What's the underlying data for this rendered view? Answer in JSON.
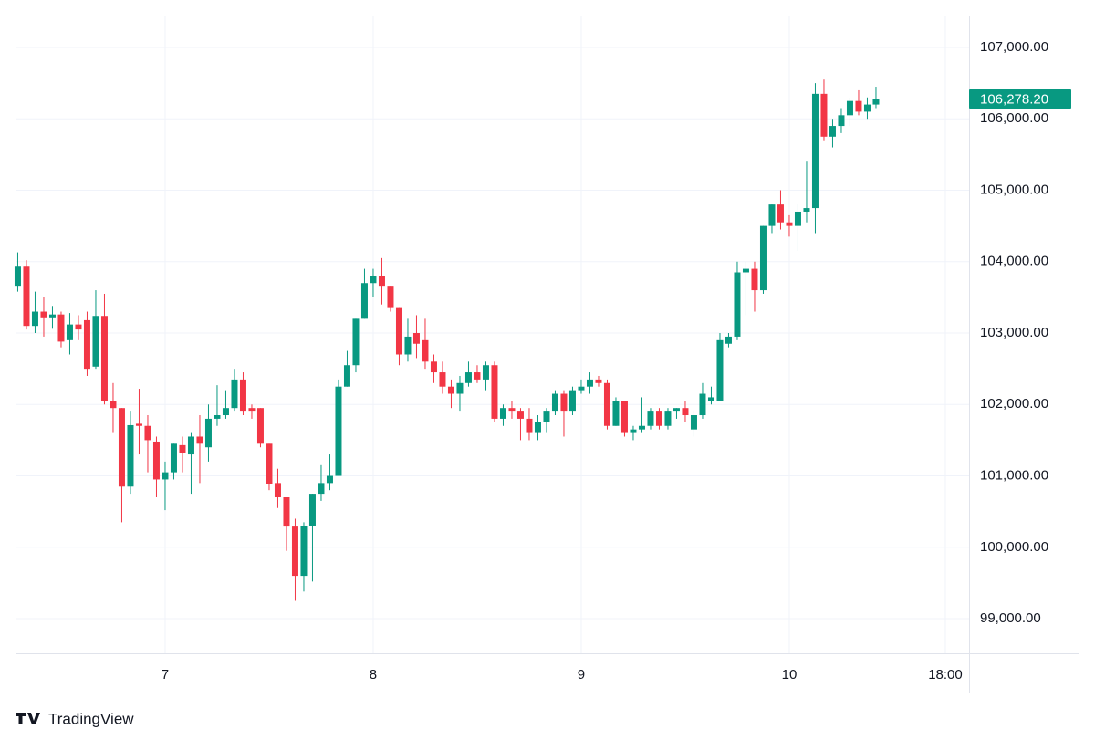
{
  "chart_data": {
    "type": "candlestick",
    "brand": "TradingView",
    "up_color": "#089981",
    "down_color": "#f23645",
    "grid": true,
    "x": [
      -17,
      -16,
      -15,
      -14,
      -13,
      -12,
      -11,
      -10,
      -9,
      -8,
      -7,
      -6,
      -5,
      -4,
      -3,
      -2,
      -1,
      0,
      1,
      2,
      3,
      4,
      5,
      6,
      7,
      8,
      9,
      10,
      11,
      12,
      13,
      14,
      15,
      16,
      17,
      18,
      19,
      20,
      21,
      22,
      23,
      24,
      25,
      26,
      27,
      28,
      29,
      30,
      31,
      32,
      33,
      34,
      35,
      36,
      37,
      38,
      39,
      40,
      41,
      42,
      43,
      44,
      45,
      46,
      47,
      48,
      49,
      50,
      51,
      52,
      53,
      54,
      55,
      56,
      57,
      58,
      59,
      60,
      61,
      62,
      63,
      64,
      65,
      66,
      67,
      68,
      69,
      70,
      71,
      72,
      73,
      74,
      75,
      76,
      77,
      78,
      79,
      80,
      81,
      82
    ],
    "open": [
      103650,
      103930,
      103100,
      103300,
      103220,
      103260,
      102900,
      103120,
      103180,
      102530,
      103240,
      102050,
      101950,
      100850,
      101730,
      101700,
      101480,
      100950,
      101050,
      101430,
      101300,
      101550,
      101400,
      101800,
      101850,
      101950,
      102350,
      101950,
      101950,
      101450,
      100900,
      100700,
      100290,
      99600,
      100300,
      100750,
      100900,
      101000,
      102250,
      102550,
      103200,
      103700,
      103800,
      103650,
      103350,
      102700,
      103000,
      102900,
      102600,
      102450,
      102250,
      102150,
      102300,
      102450,
      102350,
      102550,
      101800,
      101950,
      101900,
      101800,
      101600,
      101750,
      101900,
      102150,
      101900,
      102200,
      102250,
      102350,
      102300,
      101700,
      102050,
      101600,
      101650,
      101700,
      101900,
      101700,
      101900,
      101950,
      101650,
      101850,
      102050,
      102050,
      102850,
      102950,
      103850,
      103900,
      103600,
      104500,
      104800,
      104550,
      104500,
      104700,
      104750,
      106350,
      105750,
      105900,
      106050,
      106250,
      106100,
      106200
    ],
    "high": [
      104130,
      104020,
      103580,
      103500,
      103380,
      103300,
      103280,
      103250,
      103300,
      103600,
      103550,
      102300,
      101950,
      101900,
      102220,
      101850,
      101550,
      101200,
      101450,
      101550,
      101600,
      101850,
      102000,
      102270,
      102200,
      102500,
      102450,
      102000,
      101950,
      101450,
      101100,
      100700,
      100400,
      100350,
      100750,
      101150,
      101300,
      102350,
      102750,
      103200,
      103900,
      103900,
      104050,
      103650,
      103350,
      103200,
      103250,
      103200,
      102700,
      102600,
      102350,
      102400,
      102600,
      102550,
      102600,
      102600,
      102000,
      102050,
      101950,
      101950,
      101850,
      101950,
      102200,
      102200,
      102250,
      102350,
      102450,
      102400,
      102350,
      102100,
      102050,
      101700,
      102100,
      101950,
      101950,
      101950,
      101950,
      102050,
      101900,
      102300,
      102250,
      103000,
      103000,
      104000,
      104000,
      104000,
      104500,
      104800,
      105000,
      104650,
      104800,
      105400,
      106500,
      106550,
      106000,
      106150,
      106300,
      106400,
      106300,
      106450
    ],
    "low": [
      103580,
      103050,
      103000,
      102950,
      103060,
      102800,
      102700,
      102900,
      102400,
      102500,
      102000,
      101600,
      100350,
      100750,
      101300,
      101050,
      100700,
      100520,
      100950,
      101050,
      100750,
      100900,
      101200,
      101700,
      101800,
      101900,
      101850,
      101800,
      101400,
      100800,
      100550,
      99950,
      99250,
      99380,
      99520,
      100650,
      100800,
      101000,
      102250,
      102450,
      103200,
      103500,
      103400,
      103300,
      102550,
      102600,
      102650,
      102500,
      102300,
      102150,
      101950,
      101900,
      102250,
      102300,
      102200,
      101750,
      101700,
      101800,
      101500,
      101500,
      101500,
      101600,
      101850,
      101550,
      101850,
      102150,
      102150,
      102250,
      101650,
      101700,
      101550,
      101500,
      101600,
      101650,
      101650,
      101650,
      101800,
      101750,
      101550,
      101800,
      102000,
      102050,
      102800,
      102900,
      103250,
      103300,
      103550,
      104400,
      104450,
      104350,
      104150,
      104550,
      104400,
      105700,
      105600,
      105800,
      105900,
      106050,
      106000,
      106150
    ],
    "close": [
      103930,
      103100,
      103300,
      103220,
      103260,
      102880,
      103120,
      103050,
      102500,
      103240,
      102050,
      101950,
      100850,
      101710,
      101700,
      101500,
      100950,
      101050,
      101450,
      101320,
      101550,
      101450,
      101800,
      101850,
      101950,
      102350,
      101900,
      101900,
      101450,
      100880,
      100700,
      100290,
      99600,
      100300,
      100750,
      100900,
      101000,
      102250,
      102550,
      103200,
      103700,
      103800,
      103650,
      103350,
      102700,
      102950,
      102850,
      102600,
      102450,
      102250,
      102150,
      102300,
      102450,
      102350,
      102550,
      101800,
      101950,
      101900,
      101800,
      101600,
      101750,
      101900,
      102150,
      101900,
      102200,
      102250,
      102350,
      102300,
      101700,
      102050,
      101600,
      101650,
      101700,
      101900,
      101700,
      101900,
      101950,
      101850,
      101850,
      102150,
      102100,
      102900,
      102950,
      103850,
      103900,
      103600,
      104500,
      104800,
      104550,
      104500,
      104700,
      104750,
      106350,
      105750,
      105900,
      106050,
      106250,
      106100,
      106200,
      106278.2
    ],
    "last_price": {
      "value": 106278.2,
      "label": "106,278.20"
    },
    "xlim": [
      -17.26,
      92.74
    ],
    "xticks": [
      {
        "value": 0,
        "label": "7"
      },
      {
        "value": 24,
        "label": "8"
      },
      {
        "value": 48,
        "label": "9"
      },
      {
        "value": 72,
        "label": "10"
      },
      {
        "value": 90,
        "label": "18:00"
      }
    ],
    "ylim": [
      98515,
      107447
    ],
    "yticks": [
      {
        "value": 99000,
        "label": "99,000.00"
      },
      {
        "value": 100000,
        "label": "100,000.00"
      },
      {
        "value": 101000,
        "label": "101,000.00"
      },
      {
        "value": 102000,
        "label": "102,000.00"
      },
      {
        "value": 103000,
        "label": "103,000.00"
      },
      {
        "value": 104000,
        "label": "104,000.00"
      },
      {
        "value": 105000,
        "label": "105,000.00"
      },
      {
        "value": 106000,
        "label": "106,000.00"
      },
      {
        "value": 107000,
        "label": "107,000.00"
      }
    ]
  }
}
